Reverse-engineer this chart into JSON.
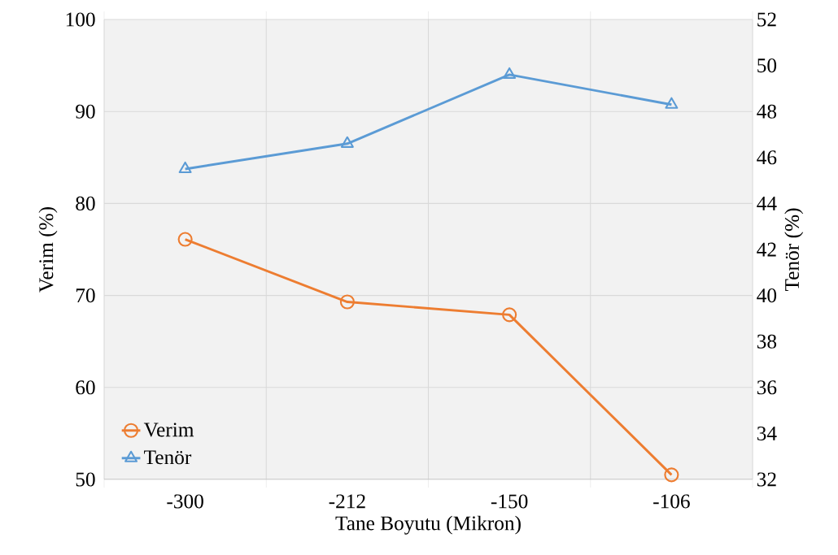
{
  "chart_data": {
    "type": "line",
    "xlabel": "Tane Boyutu (Mikron)",
    "ylabel": "Verim (%)",
    "y2label": "Tenör (%)",
    "categories": [
      "-300",
      "-212",
      "-150",
      "-106"
    ],
    "series": [
      {
        "name": "Verim",
        "color": "#ed7d31",
        "marker": "circle",
        "values": [
          76.1,
          69.3,
          67.9,
          50.5
        ]
      },
      {
        "name": "Tenör",
        "color": "#5b9bd5",
        "marker": "triangle",
        "axis": "y2",
        "values": [
          45.5,
          46.6,
          49.6,
          48.3
        ]
      }
    ],
    "ylim": [
      50,
      100
    ],
    "yticks": [
      50,
      60,
      70,
      80,
      90,
      100
    ],
    "y2lim": [
      32,
      52
    ],
    "y2ticks": [
      32,
      34,
      36,
      38,
      40,
      42,
      44,
      46,
      48,
      50,
      52
    ],
    "grid": true,
    "legend": "bottom left"
  }
}
